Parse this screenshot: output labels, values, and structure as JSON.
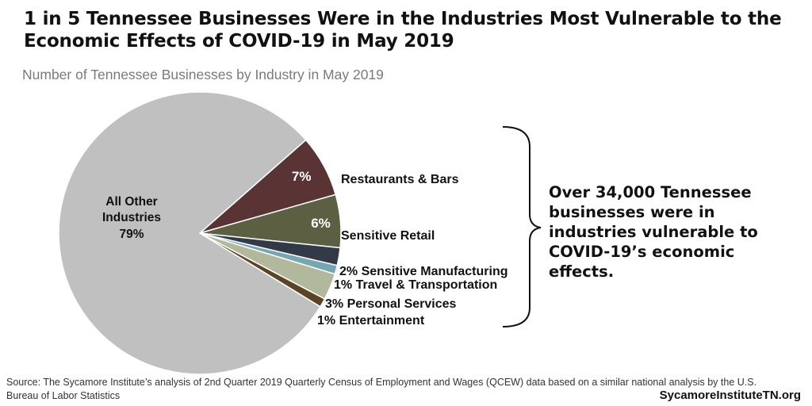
{
  "header": {
    "title": "1 in 5 Tennessee Businesses Were in the Industries Most Vulnerable to the Economic Effects of COVID-19 in May 2019",
    "subtitle": "Number of Tennessee Businesses by Industry in May 2019"
  },
  "chart_data": {
    "type": "pie",
    "title": "1 in 5 Tennessee Businesses Were in the Industries Most Vulnerable to the Economic Effects of COVID-19 in May 2019",
    "subtitle": "Number of Tennessee Businesses by Industry in May 2019",
    "slices": [
      {
        "name": "Restaurants & Bars",
        "value": 7,
        "label": "7%",
        "color": "#5a3434"
      },
      {
        "name": "Sensitive Retail",
        "value": 6,
        "label": "6%",
        "color": "#5c5f41"
      },
      {
        "name": "Sensitive Manufacturing",
        "value": 2,
        "label": "2% Sensitive Manufacturing",
        "color": "#333a47"
      },
      {
        "name": "Travel & Transportation",
        "value": 1,
        "label": "1% Travel & Transportation",
        "color": "#77a6b3"
      },
      {
        "name": "Personal Services",
        "value": 3,
        "label": "3% Personal Services",
        "color": "#b2b89c"
      },
      {
        "name": "Entertainment",
        "value": 1,
        "label": "1% Entertainment",
        "color": "#5a4424"
      },
      {
        "name": "All Other Industries",
        "value": 79,
        "label": "79%",
        "color": "#c0c0c0"
      }
    ],
    "other_label_lines": [
      "All Other",
      "Industries"
    ],
    "restaurants_name": "Restaurants & Bars",
    "retail_name": "Sensitive Retail"
  },
  "callout": {
    "text": "Over 34,000 Tennessee businesses were in industries vulnerable to COVID-19’s economic effects."
  },
  "footer": {
    "source": "Source: The Sycamore Institute’s analysis of 2nd Quarter 2019 Quarterly Census of Employment and Wages (QCEW) data based on a similar national analysis by the U.S. Bureau of Labor Statistics",
    "site": "SycamoreInstituteTN.org"
  }
}
